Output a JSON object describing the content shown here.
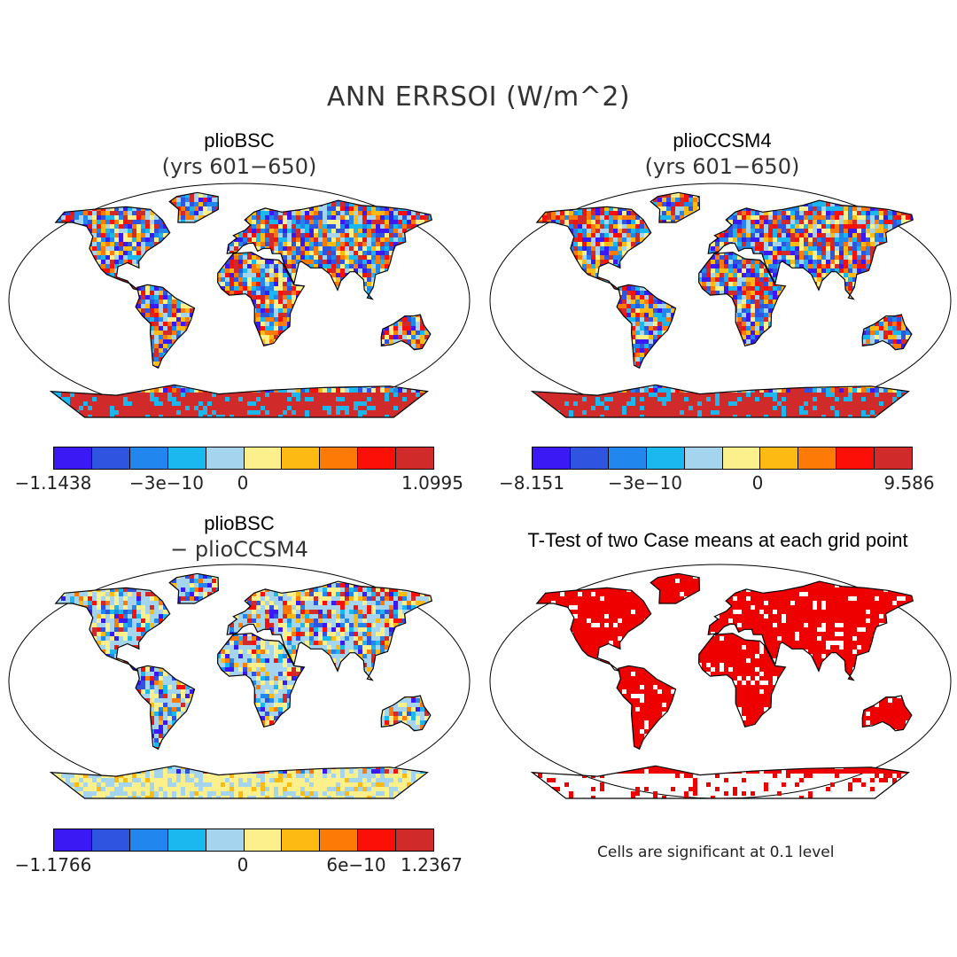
{
  "title": "ANN ERRSOI (W/m^2)",
  "palette": [
    "#3b19f5",
    "#2f55e0",
    "#2187ef",
    "#1bb8f0",
    "#a5d4ee",
    "#fbf08c",
    "#fcba13",
    "#fd7a06",
    "#fb0f06",
    "#d02a2a"
  ],
  "ttest_color": "#ee0000",
  "panels": [
    {
      "title": "plioBSC",
      "subtitle": "(yrs 601−650)",
      "ticks": [
        "−1.1438",
        "−3e−10",
        "0",
        "1.0995"
      ]
    },
    {
      "title": "plioCCSM4",
      "subtitle": "(yrs 601−650)",
      "ticks": [
        "−8.151",
        "−3e−10",
        "0",
        "9.586"
      ]
    },
    {
      "title": "plioBSC",
      "subtitle": "− plioCCSM4",
      "ticks": [
        "−1.1766",
        "0",
        "6e−10",
        "1.2367"
      ]
    },
    {
      "title": "T-Test of two Case means at each grid point",
      "note": "Cells are significant at 0.1 level"
    }
  ]
}
